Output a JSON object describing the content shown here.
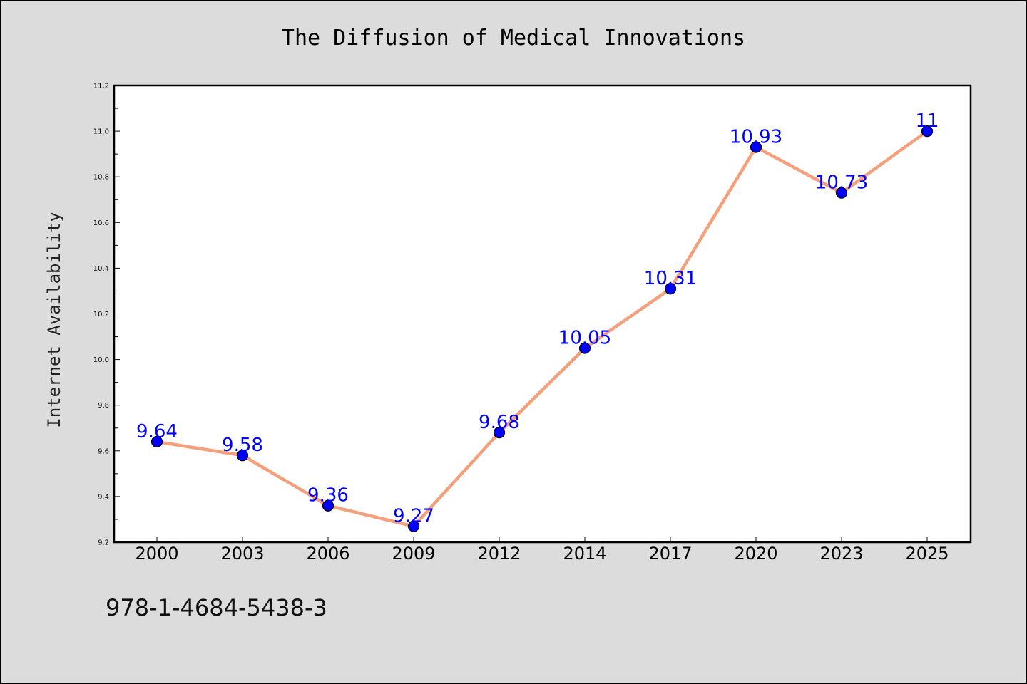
{
  "chart_data": {
    "type": "line",
    "title": "The Diffusion of Medical Innovations",
    "xlabel": "",
    "ylabel": "Internet Availability",
    "categories": [
      "2000",
      "2003",
      "2006",
      "2009",
      "2012",
      "2014",
      "2017",
      "2020",
      "2023",
      "2025"
    ],
    "values": [
      9.64,
      9.58,
      9.36,
      9.27,
      9.68,
      10.05,
      10.31,
      10.93,
      10.73,
      11
    ],
    "data_labels": [
      "9.64",
      "9.58",
      "9.36",
      "9.27",
      "9.68",
      "10.05",
      "10.31",
      "10.93",
      "10.73",
      "11"
    ],
    "ylim": [
      9.2,
      11.2
    ],
    "yticks": [
      "9.2",
      "9.4",
      "9.6",
      "9.8",
      "10.0",
      "10.2",
      "10.4",
      "10.6",
      "10.8",
      "11.0",
      "11.2"
    ],
    "grid": false,
    "line_color": "#f4a07c",
    "marker_color": "#0000ff",
    "label_color": "#0000ff"
  },
  "footer": {
    "code": "978-1-4684-5438-3"
  }
}
